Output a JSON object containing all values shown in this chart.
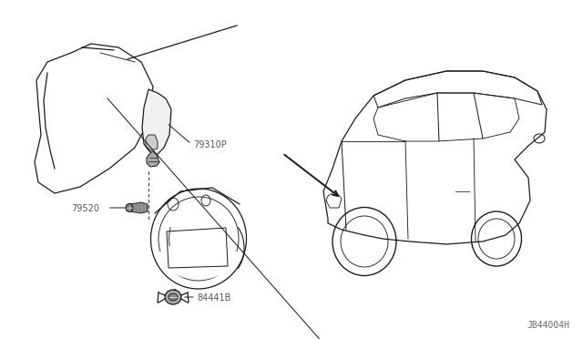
{
  "bg_color": "#ffffff",
  "line_color": "#1a1a1a",
  "gray_color": "#888888",
  "label_color": "#555555",
  "diagram_id": "JB44004H",
  "figsize": [
    6.4,
    3.72
  ],
  "dpi": 100,
  "part_label_fontsize": 7,
  "id_fontsize": 7
}
